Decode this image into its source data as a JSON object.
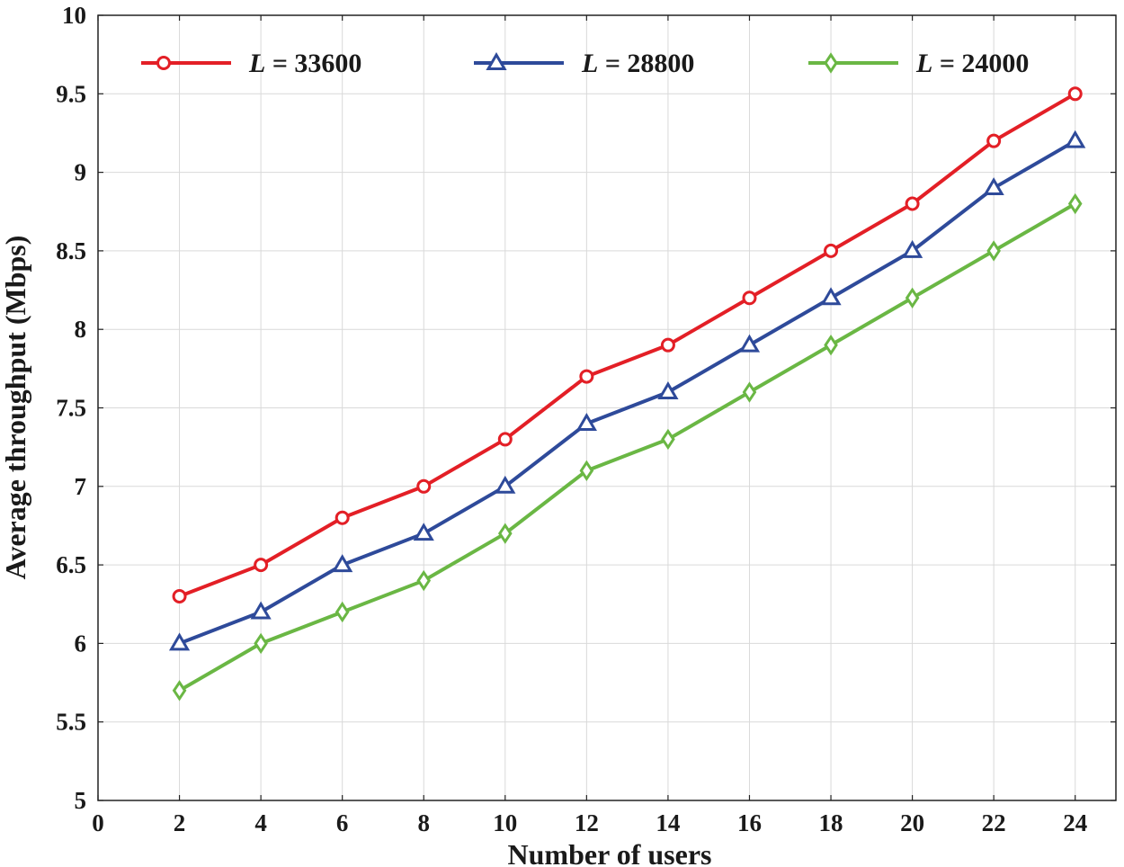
{
  "chart_data": {
    "type": "line",
    "title": "",
    "xlabel": "Number of users",
    "ylabel": "Average throughput (Mbps)",
    "xlim": [
      0,
      25
    ],
    "ylim": [
      5,
      10
    ],
    "xticks": [
      0,
      2,
      4,
      6,
      8,
      10,
      12,
      14,
      16,
      18,
      20,
      22,
      24
    ],
    "yticks": [
      5,
      5.5,
      6,
      6.5,
      7,
      7.5,
      8,
      8.5,
      9,
      9.5,
      10
    ],
    "ytick_labels": [
      "5",
      "5.5",
      "6",
      "6.5",
      "7",
      "7.5",
      "8",
      "8.5",
      "9",
      "9.5",
      "10"
    ],
    "grid": true,
    "legend_position": "top",
    "x": [
      2,
      4,
      6,
      8,
      10,
      12,
      14,
      16,
      18,
      20,
      22,
      24
    ],
    "series": [
      {
        "name": "L = 33600",
        "legend_var": "L",
        "legend_value": " = 33600",
        "color": "#e31f26",
        "marker": "circle",
        "values": [
          6.3,
          6.5,
          6.8,
          7.0,
          7.3,
          7.7,
          7.9,
          8.2,
          8.5,
          8.8,
          9.2,
          9.5
        ]
      },
      {
        "name": "L = 28800",
        "legend_var": "L",
        "legend_value": " = 28800",
        "color": "#2e4a9a",
        "marker": "triangle",
        "values": [
          6.0,
          6.2,
          6.5,
          6.7,
          7.0,
          7.4,
          7.6,
          7.9,
          8.2,
          8.5,
          8.9,
          9.2
        ]
      },
      {
        "name": "L = 24000",
        "legend_var": "L",
        "legend_value": " = 24000",
        "color": "#6ab744",
        "marker": "diamond",
        "values": [
          5.7,
          6.0,
          6.2,
          6.4,
          6.7,
          7.1,
          7.3,
          7.6,
          7.9,
          8.2,
          8.5,
          8.8
        ]
      }
    ]
  }
}
